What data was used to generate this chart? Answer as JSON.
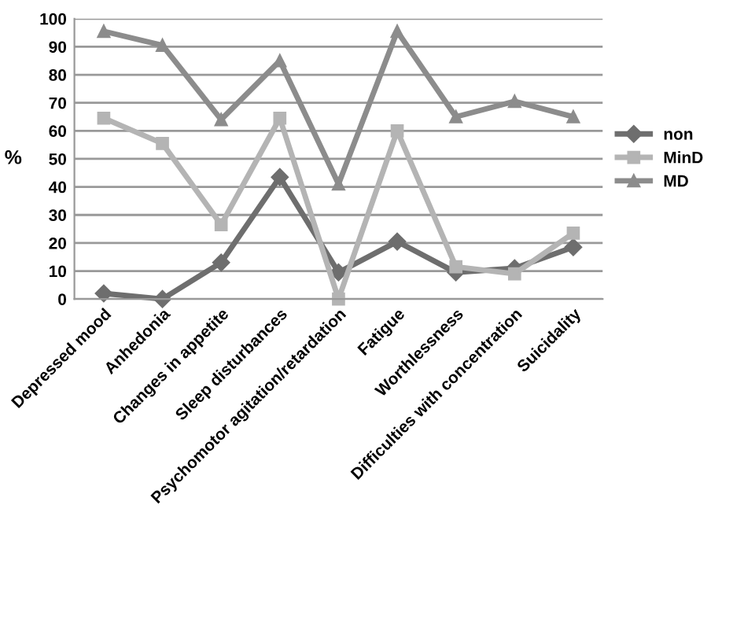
{
  "chart_data": {
    "type": "line",
    "ylabel": "%",
    "categories": [
      "Depressed mood",
      "Anhedonia",
      "Changes in appetite",
      "Sleep disturbances",
      "Psychomotor agitation/retardation",
      "Fatigue",
      "Worthlessness",
      "Difficulties with concentration",
      "Suicidality"
    ],
    "series": [
      {
        "name": "non",
        "color": "#6e6e6e",
        "marker": "diamond",
        "values": [
          2,
          0,
          13,
          43.5,
          9.5,
          20.5,
          9.5,
          11,
          18.5
        ]
      },
      {
        "name": "MinD",
        "color": "#b4b4b4",
        "marker": "square",
        "values": [
          64.5,
          55.5,
          26.5,
          64.5,
          0,
          60,
          11.5,
          9,
          23.5
        ]
      },
      {
        "name": "MD",
        "color": "#8c8c8c",
        "marker": "triangle",
        "values": [
          95.5,
          90.5,
          64,
          85,
          41,
          95.5,
          65,
          70.5,
          65
        ]
      }
    ],
    "ylim": [
      0,
      100
    ],
    "yticks": [
      0,
      10,
      20,
      30,
      40,
      50,
      60,
      70,
      80,
      90,
      100
    ],
    "grid": "y",
    "legend": "right"
  }
}
